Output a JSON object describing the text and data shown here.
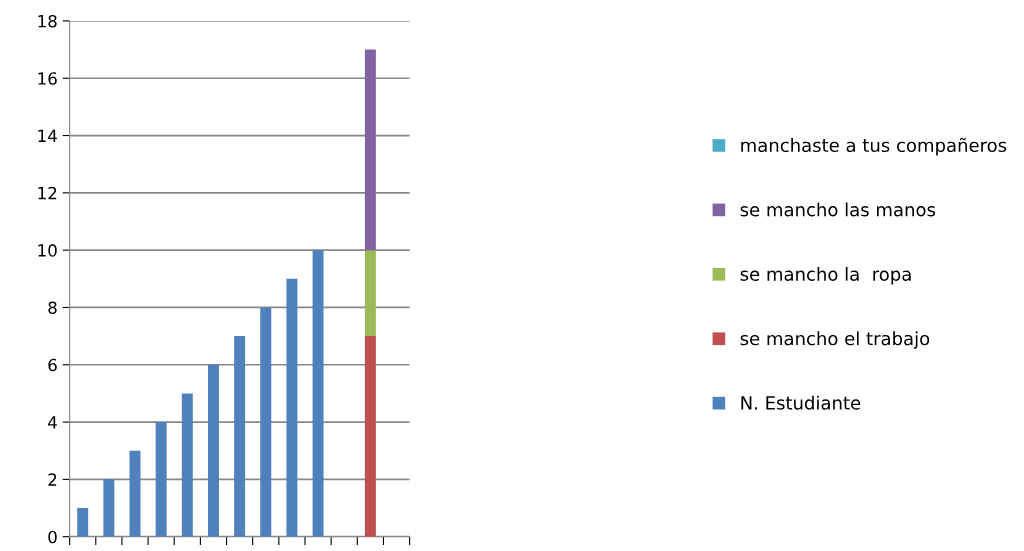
{
  "chart_data": {
    "type": "bar",
    "stacked": true,
    "categories": [
      null,
      null,
      null,
      null,
      null,
      null,
      null,
      null,
      null,
      null,
      null,
      null,
      null
    ],
    "series": [
      {
        "name": "N. Estudiante",
        "color": "#4f81bd",
        "values": [
          1,
          2,
          3,
          4,
          5,
          6,
          7,
          8,
          9,
          10,
          null,
          null,
          null
        ]
      },
      {
        "name": "se mancho el trabajo",
        "color": "#c0504d",
        "values": [
          null,
          null,
          null,
          null,
          null,
          null,
          null,
          null,
          null,
          null,
          null,
          7,
          null
        ]
      },
      {
        "name": "se mancho la  ropa",
        "color": "#9bbb59",
        "values": [
          null,
          null,
          null,
          null,
          null,
          null,
          null,
          null,
          null,
          null,
          null,
          3,
          null
        ]
      },
      {
        "name": "se mancho las manos",
        "color": "#8064a2",
        "values": [
          null,
          null,
          null,
          null,
          null,
          null,
          null,
          null,
          null,
          null,
          null,
          7,
          null
        ]
      },
      {
        "name": "manchaste a tus compañeros",
        "color": "#4bacc6",
        "values": [
          null,
          null,
          null,
          null,
          null,
          null,
          null,
          null,
          null,
          null,
          null,
          0,
          null
        ]
      }
    ],
    "ylim": [
      0,
      18
    ],
    "yticks": [
      0,
      2,
      4,
      6,
      8,
      10,
      12,
      14,
      16,
      18
    ],
    "grid": "y",
    "legend": "right",
    "tick_labels": "y"
  }
}
